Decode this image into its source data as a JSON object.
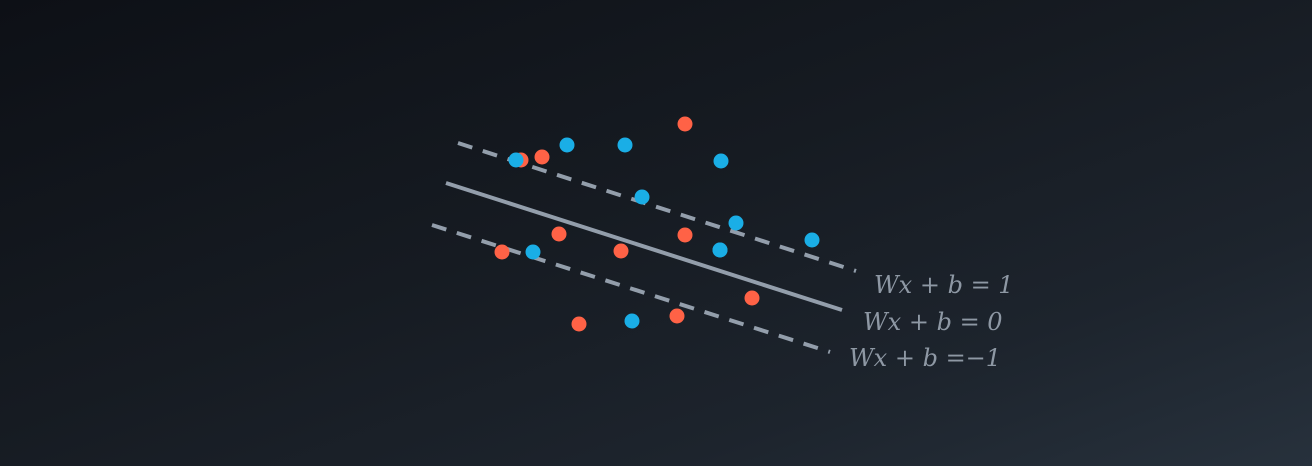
{
  "diagram": {
    "colors": {
      "class_a": "#ff6246",
      "class_b": "#1aaee6",
      "line": "#939eab",
      "label": "#8e98a4"
    },
    "lines": [
      {
        "id": "margin-upper",
        "style": "dashed",
        "label": "Wx + b = 1"
      },
      {
        "id": "decision-boundary",
        "style": "solid",
        "label": "Wx + b = 0"
      },
      {
        "id": "margin-lower",
        "style": "dashed",
        "label": "Wx + b =−1"
      }
    ],
    "points": [
      {
        "class": "class_a"
      },
      {
        "class": "class_a"
      },
      {
        "class": "class_a"
      },
      {
        "class": "class_a"
      },
      {
        "class": "class_a"
      },
      {
        "class": "class_a"
      },
      {
        "class": "class_a"
      },
      {
        "class": "class_a"
      },
      {
        "class": "class_a"
      },
      {
        "class": "class_a"
      },
      {
        "class": "class_b"
      },
      {
        "class": "class_b"
      },
      {
        "class": "class_b"
      },
      {
        "class": "class_b"
      },
      {
        "class": "class_b"
      },
      {
        "class": "class_b"
      },
      {
        "class": "class_b"
      },
      {
        "class": "class_b"
      },
      {
        "class": "class_b"
      },
      {
        "class": "class_b"
      },
      {
        "class": "class_b"
      }
    ]
  }
}
